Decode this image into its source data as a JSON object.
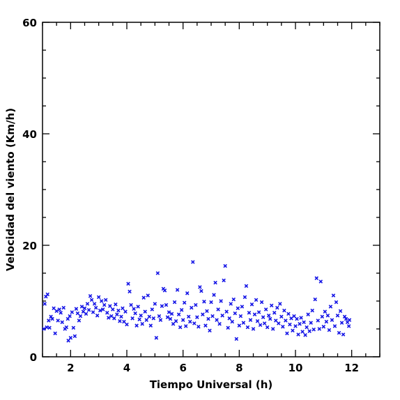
{
  "chart_data": {
    "type": "scatter",
    "title": "",
    "xlabel": "Tiempo Universal (h)",
    "ylabel": "Velocidad del viento (Km/h)",
    "xlim": [
      1,
      13
    ],
    "ylim": [
      0,
      60
    ],
    "x_ticks": [
      2,
      4,
      6,
      8,
      10,
      12
    ],
    "y_ticks": [
      0,
      20,
      40,
      60
    ],
    "grid": false,
    "legend": "none",
    "marker": "x",
    "marker_color": "#1414e6",
    "series": [
      {
        "points": [
          [
            1.05,
            5.0
          ],
          [
            1.08,
            9.5
          ],
          [
            1.12,
            10.8
          ],
          [
            1.15,
            5.3
          ],
          [
            1.18,
            11.2
          ],
          [
            1.22,
            6.5
          ],
          [
            1.25,
            5.2
          ],
          [
            1.3,
            7.2
          ],
          [
            1.35,
            6.8
          ],
          [
            1.4,
            8.7
          ],
          [
            1.45,
            4.2
          ],
          [
            1.5,
            8.2
          ],
          [
            1.55,
            6.5
          ],
          [
            1.6,
            8.5
          ],
          [
            1.65,
            7.9
          ],
          [
            1.7,
            6.2
          ],
          [
            1.75,
            8.8
          ],
          [
            1.8,
            5.0
          ],
          [
            1.85,
            5.3
          ],
          [
            1.9,
            6.8
          ],
          [
            1.92,
            2.9
          ],
          [
            1.97,
            7.3
          ],
          [
            2.0,
            3.4
          ],
          [
            2.05,
            8.0
          ],
          [
            2.1,
            5.2
          ],
          [
            2.15,
            3.7
          ],
          [
            2.2,
            8.6
          ],
          [
            2.25,
            7.8
          ],
          [
            2.3,
            6.5
          ],
          [
            2.35,
            7.3
          ],
          [
            2.4,
            9.0
          ],
          [
            2.45,
            8.1
          ],
          [
            2.5,
            8.7
          ],
          [
            2.55,
            7.7
          ],
          [
            2.6,
            9.5
          ],
          [
            2.65,
            8.4
          ],
          [
            2.7,
            10.9
          ],
          [
            2.75,
            10.2
          ],
          [
            2.8,
            8.0
          ],
          [
            2.85,
            9.5
          ],
          [
            2.9,
            8.8
          ],
          [
            2.95,
            7.4
          ],
          [
            3.0,
            10.7
          ],
          [
            3.05,
            8.3
          ],
          [
            3.1,
            10.0
          ],
          [
            3.15,
            8.5
          ],
          [
            3.2,
            9.3
          ],
          [
            3.25,
            10.2
          ],
          [
            3.3,
            7.9
          ],
          [
            3.35,
            7.0
          ],
          [
            3.4,
            9.1
          ],
          [
            3.45,
            7.3
          ],
          [
            3.5,
            8.5
          ],
          [
            3.55,
            6.9
          ],
          [
            3.6,
            9.4
          ],
          [
            3.65,
            7.6
          ],
          [
            3.7,
            8.3
          ],
          [
            3.75,
            6.4
          ],
          [
            3.8,
            7.2
          ],
          [
            3.85,
            8.7
          ],
          [
            3.9,
            6.3
          ],
          [
            3.95,
            8.1
          ],
          [
            4.0,
            5.8
          ],
          [
            4.05,
            13.1
          ],
          [
            4.1,
            11.7
          ],
          [
            4.15,
            9.3
          ],
          [
            4.2,
            6.9
          ],
          [
            4.25,
            8.6
          ],
          [
            4.3,
            7.8
          ],
          [
            4.35,
            5.6
          ],
          [
            4.4,
            9.0
          ],
          [
            4.45,
            6.7
          ],
          [
            4.5,
            7.4
          ],
          [
            4.55,
            5.9
          ],
          [
            4.6,
            10.6
          ],
          [
            4.65,
            8.1
          ],
          [
            4.7,
            6.6
          ],
          [
            4.75,
            11.0
          ],
          [
            4.8,
            7.2
          ],
          [
            4.85,
            5.6
          ],
          [
            4.9,
            8.5
          ],
          [
            4.95,
            6.9
          ],
          [
            5.0,
            9.5
          ],
          [
            5.05,
            3.4
          ],
          [
            5.1,
            15.0
          ],
          [
            5.15,
            7.3
          ],
          [
            5.2,
            6.6
          ],
          [
            5.25,
            9.1
          ],
          [
            5.3,
            12.2
          ],
          [
            5.35,
            11.9
          ],
          [
            5.4,
            9.3
          ],
          [
            5.45,
            7.1
          ],
          [
            5.5,
            8.0
          ],
          [
            5.55,
            6.8
          ],
          [
            5.6,
            7.7
          ],
          [
            5.65,
            5.9
          ],
          [
            5.7,
            9.8
          ],
          [
            5.75,
            6.4
          ],
          [
            5.8,
            12.0
          ],
          [
            5.85,
            7.6
          ],
          [
            5.9,
            5.3
          ],
          [
            5.95,
            8.4
          ],
          [
            6.0,
            6.6
          ],
          [
            6.05,
            9.7
          ],
          [
            6.1,
            5.5
          ],
          [
            6.15,
            11.4
          ],
          [
            6.2,
            7.2
          ],
          [
            6.25,
            6.3
          ],
          [
            6.3,
            8.8
          ],
          [
            6.35,
            17.0
          ],
          [
            6.4,
            6.0
          ],
          [
            6.45,
            9.3
          ],
          [
            6.5,
            7.1
          ],
          [
            6.55,
            5.4
          ],
          [
            6.6,
            12.5
          ],
          [
            6.65,
            11.8
          ],
          [
            6.7,
            7.6
          ],
          [
            6.75,
            9.9
          ],
          [
            6.8,
            5.6
          ],
          [
            6.85,
            8.2
          ],
          [
            6.9,
            6.8
          ],
          [
            6.95,
            4.7
          ],
          [
            7.0,
            9.8
          ],
          [
            7.05,
            7.3
          ],
          [
            7.1,
            11.1
          ],
          [
            7.15,
            13.3
          ],
          [
            7.2,
            6.6
          ],
          [
            7.25,
            8.5
          ],
          [
            7.3,
            5.9
          ],
          [
            7.35,
            10.0
          ],
          [
            7.4,
            7.4
          ],
          [
            7.45,
            13.7
          ],
          [
            7.5,
            16.3
          ],
          [
            7.55,
            8.1
          ],
          [
            7.6,
            5.2
          ],
          [
            7.65,
            6.9
          ],
          [
            7.7,
            9.5
          ],
          [
            7.75,
            6.3
          ],
          [
            7.8,
            10.3
          ],
          [
            7.85,
            7.8
          ],
          [
            7.9,
            3.2
          ],
          [
            7.95,
            8.7
          ],
          [
            8.0,
            5.6
          ],
          [
            8.05,
            7.3
          ],
          [
            8.1,
            9.0
          ],
          [
            8.15,
            6.1
          ],
          [
            8.2,
            10.7
          ],
          [
            8.25,
            12.7
          ],
          [
            8.3,
            5.3
          ],
          [
            8.35,
            7.9
          ],
          [
            8.4,
            6.6
          ],
          [
            8.45,
            9.4
          ],
          [
            8.5,
            5.0
          ],
          [
            8.55,
            7.6
          ],
          [
            8.6,
            10.2
          ],
          [
            8.65,
            6.4
          ],
          [
            8.7,
            8.0
          ],
          [
            8.75,
            5.7
          ],
          [
            8.8,
            9.8
          ],
          [
            8.85,
            7.1
          ],
          [
            8.9,
            6.0
          ],
          [
            8.95,
            8.5
          ],
          [
            9.0,
            5.3
          ],
          [
            9.05,
            7.4
          ],
          [
            9.1,
            6.8
          ],
          [
            9.15,
            9.2
          ],
          [
            9.2,
            5.0
          ],
          [
            9.25,
            7.9
          ],
          [
            9.3,
            6.5
          ],
          [
            9.35,
            8.8
          ],
          [
            9.4,
            6.0
          ],
          [
            9.45,
            9.5
          ],
          [
            9.5,
            7.2
          ],
          [
            9.55,
            5.4
          ],
          [
            9.6,
            8.3
          ],
          [
            9.65,
            6.5
          ],
          [
            9.7,
            4.2
          ],
          [
            9.75,
            7.7
          ],
          [
            9.8,
            5.8
          ],
          [
            9.85,
            6.9
          ],
          [
            9.9,
            4.7
          ],
          [
            9.95,
            7.3
          ],
          [
            10.0,
            5.5
          ],
          [
            10.05,
            6.8
          ],
          [
            10.1,
            4.0
          ],
          [
            10.15,
            5.9
          ],
          [
            10.2,
            7.0
          ],
          [
            10.25,
            4.5
          ],
          [
            10.3,
            6.2
          ],
          [
            10.35,
            3.9
          ],
          [
            10.4,
            5.3
          ],
          [
            10.45,
            7.6
          ],
          [
            10.5,
            4.6
          ],
          [
            10.55,
            6.1
          ],
          [
            10.6,
            8.3
          ],
          [
            10.65,
            4.9
          ],
          [
            10.7,
            10.3
          ],
          [
            10.75,
            14.1
          ],
          [
            10.8,
            6.5
          ],
          [
            10.85,
            5.0
          ],
          [
            10.9,
            13.5
          ],
          [
            10.95,
            7.2
          ],
          [
            11.0,
            5.4
          ],
          [
            11.05,
            8.1
          ],
          [
            11.1,
            6.3
          ],
          [
            11.15,
            7.4
          ],
          [
            11.2,
            4.8
          ],
          [
            11.25,
            9.0
          ],
          [
            11.3,
            6.6
          ],
          [
            11.35,
            11.0
          ],
          [
            11.4,
            5.5
          ],
          [
            11.45,
            9.8
          ],
          [
            11.5,
            7.4
          ],
          [
            11.55,
            4.3
          ],
          [
            11.6,
            8.2
          ],
          [
            11.65,
            6.1
          ],
          [
            11.7,
            4.0
          ],
          [
            11.75,
            7.2
          ],
          [
            11.8,
            6.8
          ],
          [
            11.85,
            6.2
          ],
          [
            11.9,
            5.5
          ],
          [
            11.92,
            6.6
          ]
        ]
      }
    ]
  }
}
